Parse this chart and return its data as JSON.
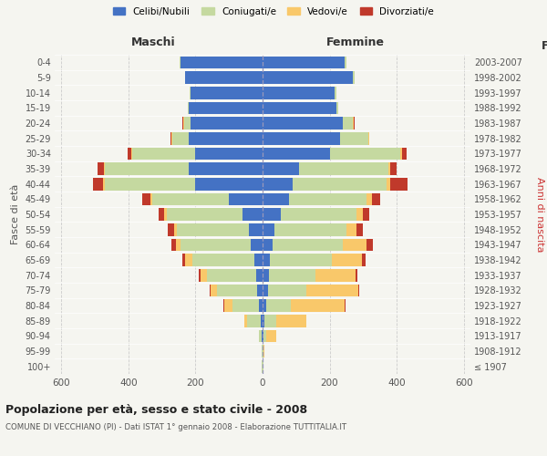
{
  "age_groups": [
    "100+",
    "95-99",
    "90-94",
    "85-89",
    "80-84",
    "75-79",
    "70-74",
    "65-69",
    "60-64",
    "55-59",
    "50-54",
    "45-49",
    "40-44",
    "35-39",
    "30-34",
    "25-29",
    "20-24",
    "15-19",
    "10-14",
    "5-9",
    "0-4"
  ],
  "birth_years": [
    "≤ 1907",
    "1908-1912",
    "1913-1917",
    "1918-1922",
    "1923-1927",
    "1928-1932",
    "1933-1937",
    "1938-1942",
    "1943-1947",
    "1948-1952",
    "1953-1957",
    "1958-1962",
    "1963-1967",
    "1968-1972",
    "1973-1977",
    "1978-1982",
    "1983-1987",
    "1988-1992",
    "1993-1997",
    "1998-2002",
    "2003-2007"
  ],
  "maschi": {
    "celibi": [
      1,
      1,
      2,
      5,
      10,
      15,
      20,
      25,
      35,
      40,
      60,
      100,
      200,
      220,
      200,
      220,
      215,
      220,
      215,
      230,
      245
    ],
    "coniugati": [
      1,
      2,
      8,
      40,
      80,
      120,
      145,
      185,
      210,
      215,
      225,
      230,
      270,
      250,
      190,
      50,
      20,
      2,
      2,
      2,
      2
    ],
    "vedovi": [
      0,
      0,
      2,
      10,
      25,
      20,
      20,
      20,
      12,
      10,
      8,
      5,
      5,
      3,
      2,
      2,
      2,
      0,
      0,
      0,
      0
    ],
    "divorziati": [
      0,
      0,
      0,
      0,
      2,
      2,
      4,
      8,
      15,
      18,
      18,
      25,
      30,
      20,
      10,
      2,
      2,
      0,
      0,
      0,
      0
    ]
  },
  "femmine": {
    "nubili": [
      1,
      1,
      2,
      5,
      10,
      15,
      18,
      22,
      30,
      35,
      55,
      80,
      90,
      110,
      200,
      230,
      240,
      220,
      215,
      270,
      245
    ],
    "coniugate": [
      1,
      2,
      8,
      35,
      75,
      115,
      140,
      185,
      210,
      215,
      225,
      230,
      280,
      265,
      210,
      85,
      30,
      5,
      5,
      5,
      5
    ],
    "vedove": [
      0,
      2,
      30,
      90,
      160,
      155,
      120,
      90,
      70,
      30,
      20,
      15,
      12,
      5,
      5,
      2,
      2,
      0,
      0,
      0,
      0
    ],
    "divorziate": [
      0,
      0,
      0,
      0,
      2,
      2,
      5,
      10,
      18,
      18,
      18,
      25,
      50,
      20,
      15,
      2,
      2,
      0,
      0,
      0,
      0
    ]
  },
  "colors": {
    "celibi": "#4472C4",
    "coniugati": "#C5D9A0",
    "vedovi": "#F9C86A",
    "divorziati": "#C0392B"
  },
  "xlim": 620,
  "title": "Popolazione per età, sesso e stato civile - 2008",
  "subtitle": "COMUNE DI VECCHIANO (PI) - Dati ISTAT 1° gennaio 2008 - Elaborazione TUTTITALIA.IT",
  "ylabel_left": "Fasce di età",
  "ylabel_right": "Anni di nascita",
  "xlabel_maschi": "Maschi",
  "xlabel_femmine": "Femmine",
  "bg_color": "#f5f5f0",
  "grid_color": "#cccccc",
  "legend_labels": [
    "Celibi/Nubili",
    "Coniugati/e",
    "Vedovi/e",
    "Divorziati/e"
  ]
}
